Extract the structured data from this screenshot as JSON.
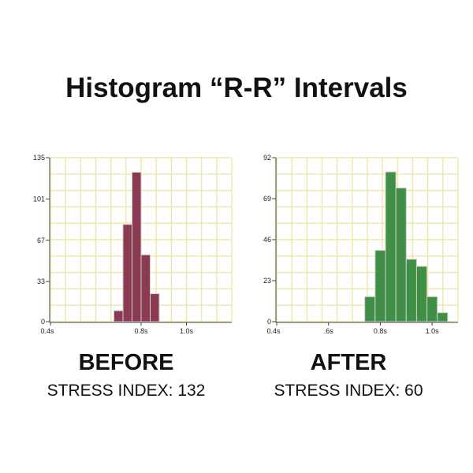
{
  "title": "Histogram “R-R” Intervals",
  "panels": [
    {
      "heading": "BEFORE",
      "caption": "STRESS INDEX: 132"
    },
    {
      "heading": "AFTER",
      "caption": "STRESS INDEX: 60"
    }
  ],
  "colors": {
    "before_bar": "#8b3a52",
    "after_bar": "#3f8f45",
    "grid": "#f0e6a8"
  },
  "chart_data": [
    {
      "type": "bar",
      "title": "BEFORE",
      "xlabel": "",
      "ylabel": "",
      "x_ticks": [
        {
          "value": 0.4,
          "label": "0.4s"
        },
        {
          "value": 0.8,
          "label": "0.8s"
        },
        {
          "value": 1.0,
          "label": "1.0s"
        }
      ],
      "y_ticks": [
        0,
        33,
        67,
        101,
        135
      ],
      "xlim": [
        0.4,
        1.2
      ],
      "ylim": [
        0,
        135
      ],
      "bin_width": 0.04,
      "bins": [
        {
          "x": 0.68,
          "value": 9
        },
        {
          "x": 0.72,
          "value": 80
        },
        {
          "x": 0.76,
          "value": 123
        },
        {
          "x": 0.8,
          "value": 55
        },
        {
          "x": 0.84,
          "value": 23
        }
      ],
      "grid": true
    },
    {
      "type": "bar",
      "title": "AFTER",
      "xlabel": "",
      "ylabel": "",
      "x_ticks": [
        {
          "value": 0.4,
          "label": "0.4s"
        },
        {
          "value": 0.6,
          "label": ".6s"
        },
        {
          "value": 0.8,
          "label": "0.8s"
        },
        {
          "value": 1.0,
          "label": "1.0s"
        }
      ],
      "y_ticks": [
        0,
        23,
        46,
        69,
        92
      ],
      "xlim": [
        0.4,
        1.1
      ],
      "ylim": [
        0,
        92
      ],
      "bin_width": 0.04,
      "bins": [
        {
          "x": 0.74,
          "value": 14
        },
        {
          "x": 0.78,
          "value": 40
        },
        {
          "x": 0.82,
          "value": 84
        },
        {
          "x": 0.86,
          "value": 75
        },
        {
          "x": 0.9,
          "value": 35
        },
        {
          "x": 0.94,
          "value": 31
        },
        {
          "x": 0.98,
          "value": 14
        },
        {
          "x": 1.02,
          "value": 5
        }
      ],
      "grid": true
    }
  ]
}
